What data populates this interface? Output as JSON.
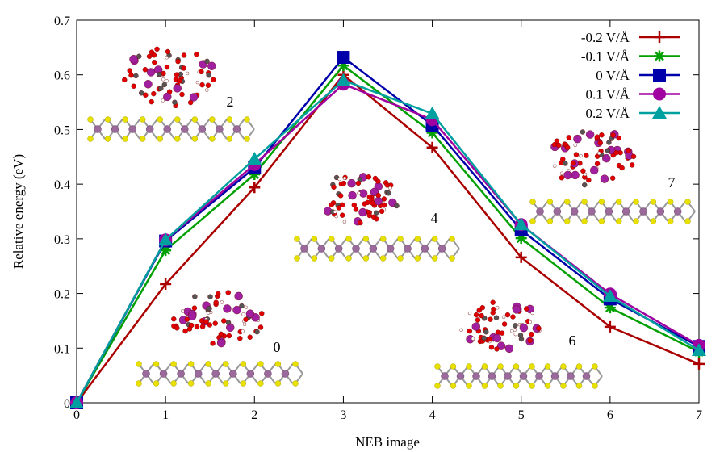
{
  "chart_data": {
    "type": "line",
    "xlabel": "NEB image",
    "ylabel": "Relative energy (eV)",
    "x": [
      0,
      1,
      2,
      3,
      4,
      5,
      6,
      7
    ],
    "xlim": [
      0,
      7
    ],
    "ylim": [
      0,
      0.7
    ],
    "xticks": [
      "0",
      "1",
      "2",
      "3",
      "4",
      "5",
      "6",
      "7"
    ],
    "yticks": [
      "0",
      "0.1",
      "0.2",
      "0.3",
      "0.4",
      "0.5",
      "0.6",
      "0.7"
    ],
    "grid": false,
    "legend_position": "top-right",
    "series": [
      {
        "name": "-0.2 V/Å",
        "color": "#aa0000",
        "marker": "plus",
        "values": [
          0,
          0.217,
          0.394,
          0.6,
          0.467,
          0.266,
          0.139,
          0.071
        ]
      },
      {
        "name": "-0.1 V/Å",
        "color": "#00a000",
        "marker": "star",
        "values": [
          0,
          0.279,
          0.418,
          0.617,
          0.494,
          0.301,
          0.174,
          0.093
        ]
      },
      {
        "name": "0 V/Å",
        "color": "#0000aa",
        "marker": "square",
        "values": [
          0,
          0.296,
          0.43,
          0.632,
          0.508,
          0.316,
          0.19,
          0.103
        ]
      },
      {
        "name": "0.1 V/Å",
        "color": "#a000a0",
        "marker": "circle",
        "values": [
          0,
          0.298,
          0.436,
          0.583,
          0.518,
          0.326,
          0.199,
          0.105
        ]
      },
      {
        "name": "0.2 V/Å",
        "color": "#00a0a0",
        "marker": "triangle",
        "values": [
          0,
          0.298,
          0.446,
          0.59,
          0.529,
          0.326,
          0.195,
          0.096
        ]
      }
    ],
    "annotations": [
      "2",
      "4",
      "7",
      "0",
      "6"
    ]
  }
}
